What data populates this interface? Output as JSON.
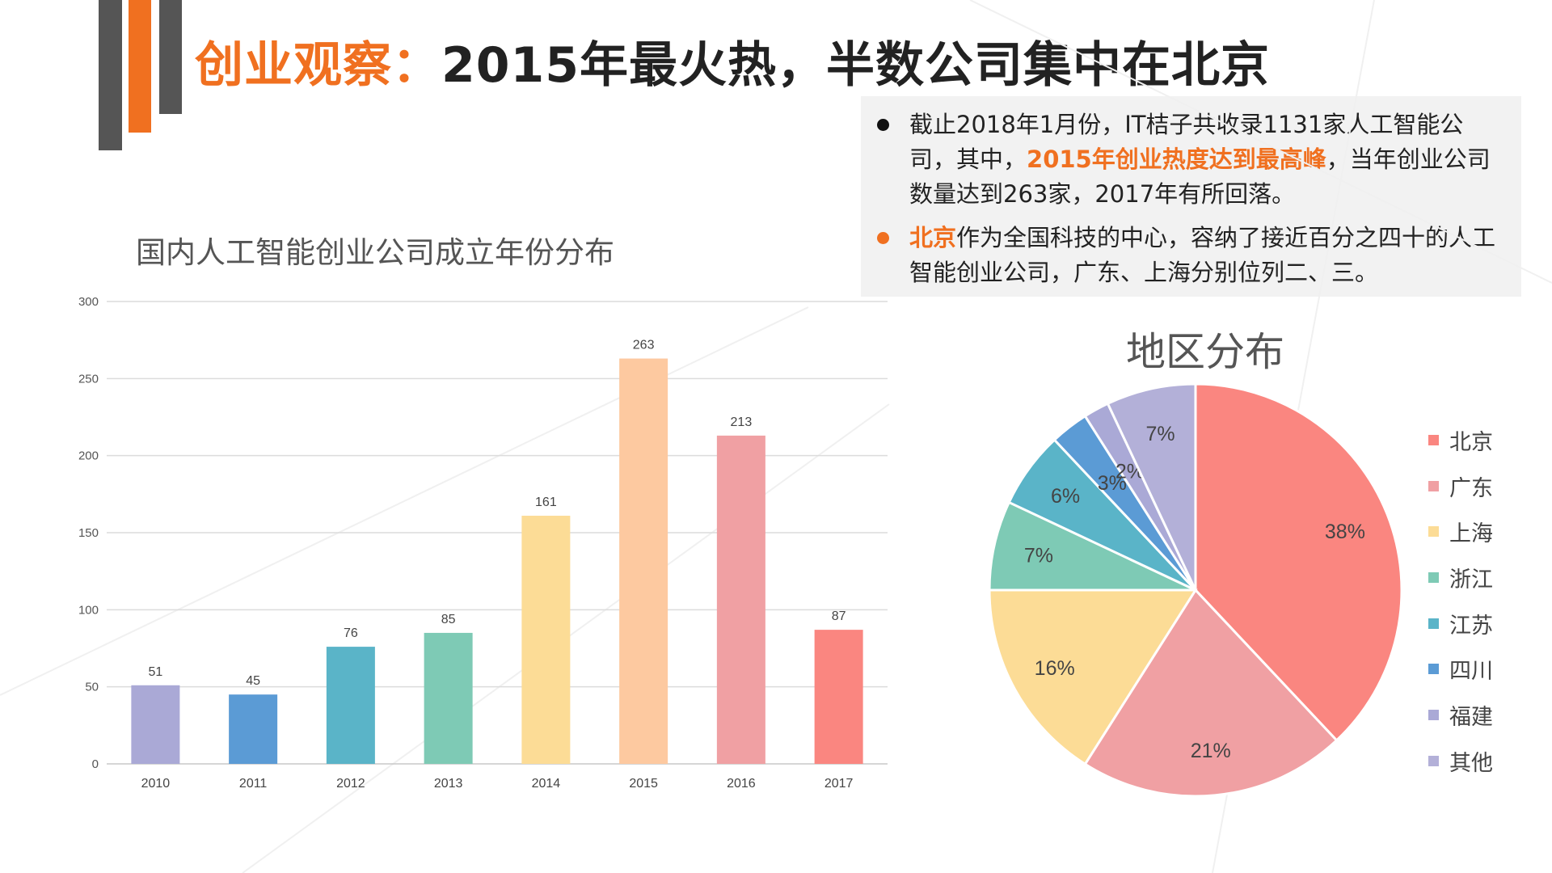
{
  "header": {
    "title_highlight": "创业观察：",
    "title_rest": "2015年最火热，半数公司集中在北京",
    "accent_color": "#f07020"
  },
  "info": {
    "bullet1_a": "截止2018年1月份，IT桔子共收录1131家人工智能公司，其中，",
    "bullet1_hl": "2015年创业热度达到最高峰",
    "bullet1_b": "，当年创业公司数量达到263家，2017年有所回落。",
    "bullet2_hl": "北京",
    "bullet2_b": "作为全国科技的中心，容纳了接近百分之四十的人工智能创业公司，广东、上海分别位列二、三。"
  },
  "chart_data": [
    {
      "type": "bar",
      "title": "国内人工智能创业公司成立年份分布",
      "categories": [
        "2010",
        "2011",
        "2012",
        "2013",
        "2014",
        "2015",
        "2016",
        "2017"
      ],
      "values": [
        51,
        45,
        76,
        85,
        161,
        263,
        213,
        87
      ],
      "colors": [
        "#aaa9d6",
        "#5b9bd5",
        "#5ab4c8",
        "#7ecab5",
        "#fcdc96",
        "#fdc9a0",
        "#f0a0a3",
        "#fa8680"
      ],
      "yticks": [
        0,
        50,
        100,
        150,
        200,
        250,
        300
      ],
      "ylim": [
        0,
        300
      ],
      "grid": true,
      "data_labels": true
    },
    {
      "type": "pie",
      "title": "地区分布",
      "labels": [
        "北京",
        "广东",
        "上海",
        "浙江",
        "江苏",
        "四川",
        "福建",
        "其他"
      ],
      "values": [
        38,
        21,
        16,
        7,
        6,
        3,
        2,
        7
      ],
      "value_labels": [
        "38%",
        "21%",
        "16%",
        "7%",
        "6%",
        "3%",
        "2%",
        "7%"
      ],
      "colors": [
        "#fa8680",
        "#f0a0a3",
        "#fcdc96",
        "#7ecab5",
        "#5ab4c8",
        "#5b9bd5",
        "#aaa9d6",
        "#b3b0d8"
      ],
      "legend": "right"
    }
  ]
}
